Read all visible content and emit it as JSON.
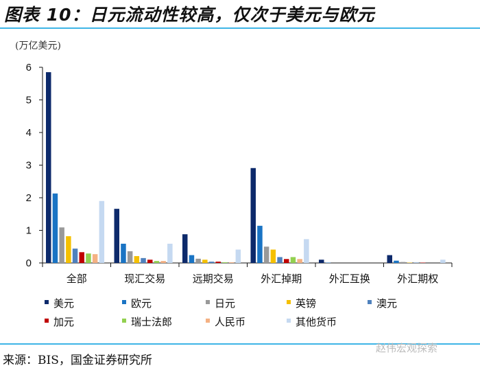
{
  "header": {
    "title": "图表 10：日元流动性较高，仅次于美元与欧元"
  },
  "footer": {
    "source": "来源：BIS，国金证券研究所",
    "watermark": "赵伟宏观探索"
  },
  "chart_data": {
    "type": "bar",
    "title": "图表 10：日元流动性较高，仅次于美元与欧元",
    "ylabel": "(万亿美元)",
    "xlabel": "",
    "ylim": [
      0,
      6
    ],
    "yticks": [
      "0",
      "1",
      "2",
      "3",
      "4",
      "5",
      "6"
    ],
    "legend_position": "bottom",
    "categories": [
      "全部",
      "现汇交易",
      "远期交易",
      "外汇掉期",
      "外汇互换",
      "外汇期权"
    ],
    "series": [
      {
        "name": "美元",
        "color": "#0d2a6b",
        "values": [
          5.85,
          1.66,
          0.88,
          2.91,
          0.1,
          0.24
        ]
      },
      {
        "name": "欧元",
        "color": "#1a74c4",
        "values": [
          2.13,
          0.59,
          0.24,
          1.14,
          0.01,
          0.07
        ]
      },
      {
        "name": "日元",
        "color": "#999999",
        "values": [
          1.09,
          0.36,
          0.13,
          0.5,
          0.0,
          0.03
        ]
      },
      {
        "name": "英镑",
        "color": "#f5c000",
        "values": [
          0.82,
          0.21,
          0.1,
          0.41,
          0.0,
          0.01
        ]
      },
      {
        "name": "澳元",
        "color": "#4f81bd",
        "values": [
          0.44,
          0.15,
          0.04,
          0.18,
          0.0,
          0.01
        ]
      },
      {
        "name": "加元",
        "color": "#c00000",
        "values": [
          0.33,
          0.1,
          0.04,
          0.12,
          0.0,
          0.01
        ]
      },
      {
        "name": "瑞士法郎",
        "color": "#92d050",
        "values": [
          0.29,
          0.06,
          0.02,
          0.18,
          0.0,
          0.0
        ]
      },
      {
        "name": "人民币",
        "color": "#f4b183",
        "values": [
          0.27,
          0.06,
          0.02,
          0.12,
          0.0,
          0.0
        ]
      },
      {
        "name": "其他货币",
        "color": "#c5d9f1",
        "values": [
          1.9,
          0.59,
          0.41,
          0.73,
          0.0,
          0.1
        ]
      }
    ]
  }
}
